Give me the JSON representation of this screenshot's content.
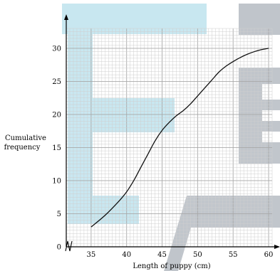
{
  "chart_data": {
    "type": "line",
    "title": "",
    "xlabel": "Length of puppy (cm)",
    "ylabel_lines": [
      "Cumulative",
      "frequency"
    ],
    "x_ticks": [
      35,
      40,
      45,
      50,
      55,
      60
    ],
    "y_ticks": [
      0,
      5,
      10,
      15,
      20,
      25,
      30
    ],
    "xlim": [
      31.5,
      60.5
    ],
    "ylim": [
      0,
      33
    ],
    "grid": true,
    "axis_break": true,
    "series": [
      {
        "values": [
          [
            35,
            3
          ],
          [
            37,
            4.8
          ],
          [
            39,
            7
          ],
          [
            40,
            8.3
          ],
          [
            41,
            10
          ],
          [
            42,
            12
          ],
          [
            43,
            14
          ],
          [
            44,
            16
          ],
          [
            45,
            17.6
          ],
          [
            46,
            18.8
          ],
          [
            47,
            19.8
          ],
          [
            48,
            20.6
          ],
          [
            49,
            21.6
          ],
          [
            50,
            22.8
          ],
          [
            51,
            24
          ],
          [
            52,
            25.2
          ],
          [
            53,
            26.4
          ],
          [
            54,
            27.3
          ],
          [
            55,
            28
          ],
          [
            56,
            28.6
          ],
          [
            57,
            29.1
          ],
          [
            58,
            29.5
          ],
          [
            59,
            29.8
          ],
          [
            60,
            30
          ]
        ],
        "color": "#111111"
      }
    ],
    "colors": {
      "grid_minor": "#cfcfcf",
      "grid_major": "#a9a9a9",
      "watermark_blue": "#bfe3ee",
      "watermark_gray": "#b6bcc3"
    }
  }
}
